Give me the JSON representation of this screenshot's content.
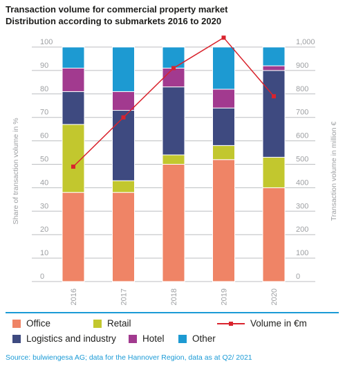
{
  "title_lines": [
    "Transaction volume for commercial property market",
    "Distribution according to submarkets 2016 to 2020"
  ],
  "colors": {
    "office": "#ef8466",
    "retail": "#c2c72e",
    "logistics": "#3e4a80",
    "hotel": "#a23a8f",
    "other": "#1d9ad2",
    "volume": "#d9232d",
    "grid": "#bcbec0",
    "axis_text": "#9d9fa2",
    "rule": "#1a9ad6"
  },
  "chart_data": {
    "type": "bar",
    "stacked": true,
    "categories": [
      "2016",
      "2017",
      "2018",
      "2019",
      "2020"
    ],
    "series": [
      {
        "name": "Office",
        "key": "office",
        "values": [
          38,
          38,
          50,
          52,
          40
        ]
      },
      {
        "name": "Retail",
        "key": "retail",
        "values": [
          29,
          5,
          4,
          6,
          13
        ]
      },
      {
        "name": "Logistics and industry",
        "key": "logistics",
        "values": [
          14,
          30,
          29,
          16,
          37
        ]
      },
      {
        "name": "Hotel",
        "key": "hotel",
        "values": [
          10,
          8,
          8,
          8,
          2
        ]
      },
      {
        "name": "Other",
        "key": "other",
        "values": [
          9,
          19,
          9,
          18,
          8
        ]
      }
    ],
    "line_series": {
      "name": "Volume in €m",
      "values": [
        490,
        700,
        910,
        1040,
        790
      ]
    },
    "ylabel_left": "Share of transaction volume in %",
    "ylabel_right": "Transaction volume in million €",
    "ylim_left": [
      0,
      100
    ],
    "ylim_right": [
      0,
      1000
    ],
    "left_ticks": [
      "0",
      "10",
      "20",
      "30",
      "40",
      "50",
      "60",
      "70",
      "80",
      "90",
      "100"
    ],
    "right_ticks": [
      "0",
      "100",
      "200",
      "300",
      "400",
      "500",
      "600",
      "700",
      "800",
      "900",
      "1,000"
    ],
    "grid": true,
    "legend_position": "bottom"
  },
  "legend": {
    "office": "Office",
    "retail": "Retail",
    "volume": "Volume in €m",
    "logistics": "Logistics and industry",
    "hotel": "Hotel",
    "other": "Other"
  },
  "source": "Source: bulwiengesa AG; data for the Hannover Region, data as at Q2/ 2021"
}
